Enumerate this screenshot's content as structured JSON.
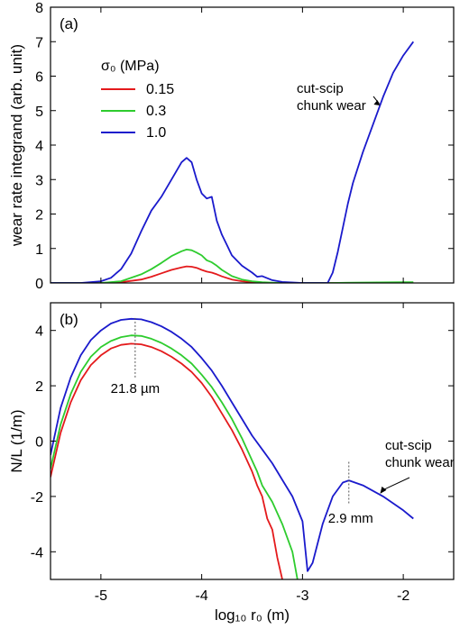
{
  "chart_data": [
    {
      "type": "line",
      "panel_label": "(a)",
      "xlabel": "",
      "ylabel": "wear rate integrand  (arb. unit)",
      "xlim": [
        -5.5,
        -1.5
      ],
      "ylim": [
        0,
        8
      ],
      "x_ticks": [
        -5,
        -4,
        -3,
        -2
      ],
      "y_ticks": [
        0,
        1,
        2,
        3,
        4,
        5,
        6,
        7,
        8
      ],
      "grid": false,
      "legend": {
        "title": "σ₀ (MPa)",
        "placement": "upper-left",
        "entries": [
          "0.15",
          "0.3",
          "1.0"
        ]
      },
      "annotations": [
        {
          "text": "cut-scip\nchunk wear",
          "x": -2.25,
          "y": 5.2,
          "arrow_to_series": "1.0"
        }
      ],
      "series": [
        {
          "name": "0.15",
          "color": "#e41a1c",
          "x": [
            -5.5,
            -5.0,
            -4.8,
            -4.6,
            -4.5,
            -4.4,
            -4.3,
            -4.2,
            -4.15,
            -4.1,
            -4.05,
            -4.0,
            -3.95,
            -3.9,
            -3.85,
            -3.8,
            -3.7,
            -3.6,
            -3.5,
            -3.4,
            -3.3,
            -3.2,
            -3.0,
            -2.5,
            -2.0,
            -1.9
          ],
          "y": [
            0,
            0,
            0.02,
            0.1,
            0.18,
            0.28,
            0.38,
            0.45,
            0.48,
            0.47,
            0.44,
            0.38,
            0.33,
            0.3,
            0.25,
            0.19,
            0.1,
            0.05,
            0.02,
            0.01,
            0.0,
            0,
            0,
            0,
            0,
            0
          ]
        },
        {
          "name": "0.3",
          "color": "#2ecc2e",
          "x": [
            -5.5,
            -5.0,
            -4.8,
            -4.6,
            -4.5,
            -4.4,
            -4.3,
            -4.2,
            -4.15,
            -4.1,
            -4.05,
            -4.0,
            -3.95,
            -3.9,
            -3.85,
            -3.8,
            -3.7,
            -3.6,
            -3.5,
            -3.4,
            -3.3,
            -3.2,
            -3.0,
            -2.7,
            -2.5,
            -2.0,
            -1.9
          ],
          "y": [
            0,
            0,
            0.05,
            0.25,
            0.4,
            0.58,
            0.78,
            0.92,
            0.97,
            0.95,
            0.88,
            0.8,
            0.66,
            0.6,
            0.5,
            0.38,
            0.2,
            0.1,
            0.05,
            0.02,
            0.01,
            0.0,
            0,
            0,
            0.01,
            0.02,
            0.02
          ]
        },
        {
          "name": "1.0",
          "color": "#1a1acc",
          "x": [
            -5.5,
            -5.2,
            -5.0,
            -4.9,
            -4.8,
            -4.7,
            -4.6,
            -4.5,
            -4.4,
            -4.3,
            -4.2,
            -4.15,
            -4.1,
            -4.05,
            -4.0,
            -3.95,
            -3.9,
            -3.85,
            -3.8,
            -3.75,
            -3.7,
            -3.6,
            -3.5,
            -3.45,
            -3.4,
            -3.3,
            -3.2,
            -3.0,
            -2.75,
            -2.7,
            -2.65,
            -2.6,
            -2.55,
            -2.5,
            -2.4,
            -2.3,
            -2.2,
            -2.1,
            -2.0,
            -1.9
          ],
          "y": [
            0,
            0,
            0.05,
            0.15,
            0.4,
            0.85,
            1.5,
            2.1,
            2.5,
            3.0,
            3.5,
            3.63,
            3.5,
            3.0,
            2.6,
            2.45,
            2.5,
            1.8,
            1.4,
            1.1,
            0.8,
            0.5,
            0.3,
            0.18,
            0.2,
            0.08,
            0.03,
            0.0,
            0.0,
            0.3,
            0.9,
            1.6,
            2.3,
            2.9,
            3.8,
            4.6,
            5.4,
            6.1,
            6.6,
            7.0
          ]
        }
      ]
    },
    {
      "type": "line",
      "panel_label": "(b)",
      "xlabel": "log₁₀ r₀  (m)",
      "ylabel": "N/L  (1/m)",
      "xlim": [
        -5.5,
        -1.5
      ],
      "ylim": [
        -5,
        5
      ],
      "x_ticks": [
        -5,
        -4,
        -3,
        -2
      ],
      "y_ticks": [
        -4,
        -2,
        0,
        2,
        4
      ],
      "grid": false,
      "annotations": [
        {
          "text": "21.8 µm",
          "x": -4.66,
          "y": 2.0,
          "marker": "vertical dotted line at x = -4.66"
        },
        {
          "text": "2.9 mm",
          "x": -2.54,
          "y": -2.65,
          "marker": "vertical dotted line at x = -2.54"
        },
        {
          "text": "cut-scip\nchunk wear",
          "x": -2.2,
          "y": -0.9,
          "arrow_to_series": "1.0"
        }
      ],
      "series": [
        {
          "name": "0.15",
          "color": "#e41a1c",
          "x": [
            -5.5,
            -5.4,
            -5.3,
            -5.2,
            -5.1,
            -5.0,
            -4.9,
            -4.8,
            -4.7,
            -4.6,
            -4.5,
            -4.4,
            -4.3,
            -4.2,
            -4.1,
            -4.0,
            -3.9,
            -3.8,
            -3.7,
            -3.6,
            -3.5,
            -3.45,
            -3.4,
            -3.35,
            -3.3,
            -3.25,
            -3.2
          ],
          "y": [
            -1.3,
            0.3,
            1.4,
            2.2,
            2.75,
            3.1,
            3.35,
            3.48,
            3.52,
            3.5,
            3.4,
            3.25,
            3.05,
            2.8,
            2.5,
            2.1,
            1.6,
            1.0,
            0.4,
            -0.3,
            -1.1,
            -1.6,
            -2.0,
            -2.8,
            -3.2,
            -4.2,
            -5.0
          ]
        },
        {
          "name": "0.3",
          "color": "#2ecc2e",
          "x": [
            -5.5,
            -5.4,
            -5.3,
            -5.2,
            -5.1,
            -5.0,
            -4.9,
            -4.8,
            -4.7,
            -4.6,
            -4.5,
            -4.4,
            -4.3,
            -4.2,
            -4.1,
            -4.0,
            -3.9,
            -3.8,
            -3.7,
            -3.6,
            -3.5,
            -3.45,
            -3.4,
            -3.3,
            -3.2,
            -3.1,
            -3.05
          ],
          "y": [
            -1.0,
            0.6,
            1.7,
            2.5,
            3.05,
            3.4,
            3.62,
            3.76,
            3.82,
            3.8,
            3.7,
            3.55,
            3.35,
            3.1,
            2.8,
            2.4,
            1.95,
            1.4,
            0.8,
            0.1,
            -0.7,
            -1.1,
            -1.6,
            -2.2,
            -3.0,
            -4.0,
            -5.0
          ]
        },
        {
          "name": "1.0",
          "color": "#1a1acc",
          "x": [
            -5.5,
            -5.4,
            -5.3,
            -5.2,
            -5.1,
            -5.0,
            -4.9,
            -4.8,
            -4.7,
            -4.6,
            -4.5,
            -4.4,
            -4.3,
            -4.2,
            -4.1,
            -4.0,
            -3.9,
            -3.8,
            -3.7,
            -3.6,
            -3.5,
            -3.4,
            -3.3,
            -3.2,
            -3.1,
            -3.0,
            -2.95,
            -2.9,
            -2.8,
            -2.7,
            -2.6,
            -2.54,
            -2.4,
            -2.2,
            -2.0,
            -1.9
          ],
          "y": [
            -0.5,
            1.2,
            2.3,
            3.1,
            3.65,
            4.0,
            4.25,
            4.38,
            4.42,
            4.4,
            4.3,
            4.15,
            3.95,
            3.7,
            3.4,
            3.0,
            2.55,
            2.0,
            1.4,
            0.8,
            0.2,
            -0.3,
            -0.8,
            -1.4,
            -2.0,
            -2.9,
            -4.7,
            -4.4,
            -3.0,
            -2.0,
            -1.5,
            -1.42,
            -1.6,
            -2.0,
            -2.5,
            -2.8
          ]
        }
      ]
    }
  ]
}
